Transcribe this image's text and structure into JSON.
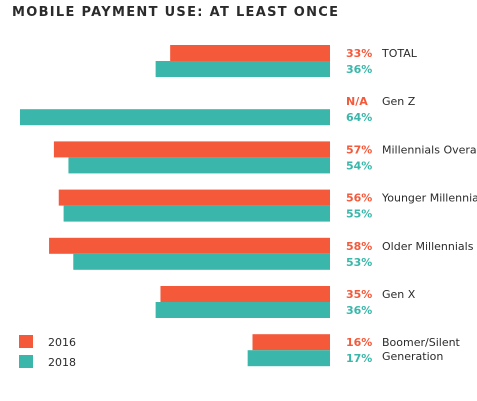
{
  "chart_data": {
    "type": "bar",
    "orientation": "horizontal",
    "title": "MOBILE PAYMENT USE: AT LEAST ONCE",
    "categories": [
      "TOTAL",
      "Gen Z",
      "Millennials Overall",
      "Younger Millennials",
      "Older Millennials",
      "Gen X",
      "Boomer/Silent Generation"
    ],
    "category_lines": [
      [
        "TOTAL"
      ],
      [
        "Gen Z"
      ],
      [
        "Millennials Overall"
      ],
      [
        "Younger Millennials"
      ],
      [
        "Older Millennials"
      ],
      [
        "Gen X"
      ],
      [
        "Boomer/Silent",
        "Generation"
      ]
    ],
    "series": [
      {
        "name": "2016",
        "color": "#f4593a",
        "values": [
          33,
          null,
          57,
          56,
          58,
          35,
          16
        ],
        "labels": [
          "33%",
          "N/A",
          "57%",
          "56%",
          "58%",
          "35%",
          "16%"
        ]
      },
      {
        "name": "2018",
        "color": "#3ab7aa",
        "values": [
          36,
          64,
          54,
          55,
          53,
          36,
          17
        ],
        "labels": [
          "36%",
          "64%",
          "54%",
          "55%",
          "53%",
          "36%",
          "17%"
        ]
      }
    ],
    "xlim": [
      0,
      64
    ],
    "grid": false,
    "legend_position": "bottom-left"
  }
}
